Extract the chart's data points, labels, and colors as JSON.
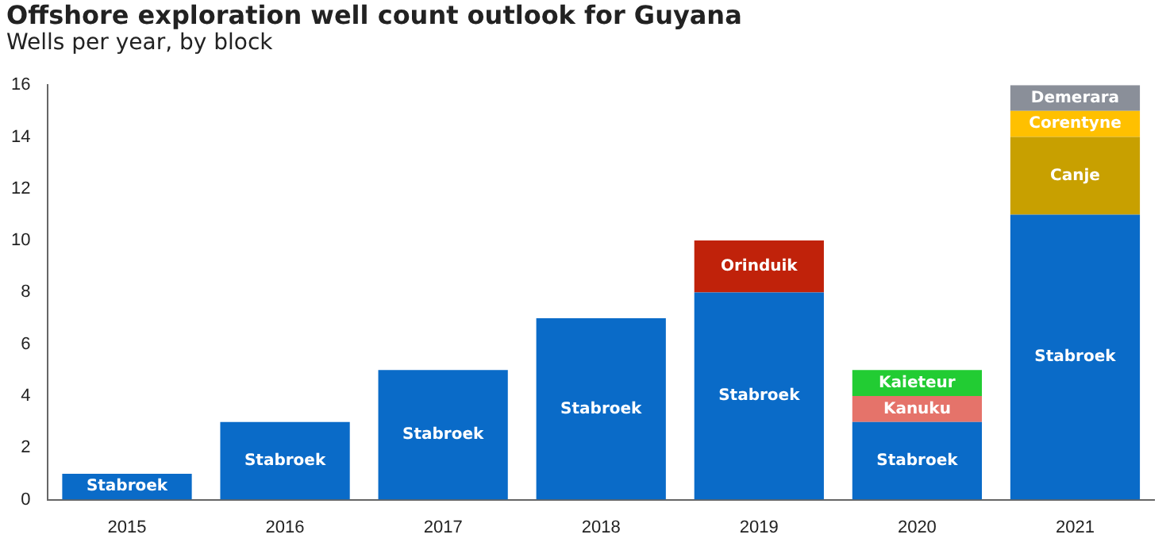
{
  "chart_data": {
    "type": "bar",
    "title": "Offshore exploration well count outlook for Guyana",
    "subtitle": "Wells per year, by block",
    "categories": [
      "2015",
      "2016",
      "2017",
      "2018",
      "2019",
      "2020",
      "2021"
    ],
    "stacked": true,
    "ylim": [
      0,
      16
    ],
    "yticks": [
      0,
      2,
      4,
      6,
      8,
      10,
      12,
      14,
      16
    ],
    "grid": false,
    "legend": false,
    "series": [
      {
        "name": "Stabroek",
        "color": "#0a6bc8",
        "values": [
          1,
          3,
          5,
          7,
          8,
          3,
          11
        ]
      },
      {
        "name": "Orinduik",
        "color": "#c0220a",
        "values": [
          null,
          null,
          null,
          null,
          2,
          null,
          null
        ]
      },
      {
        "name": "Kanuku",
        "color": "#e5736a",
        "values": [
          null,
          null,
          null,
          null,
          null,
          1,
          null
        ]
      },
      {
        "name": "Kaieteur",
        "color": "#22cc33",
        "values": [
          null,
          null,
          null,
          null,
          null,
          1,
          null
        ]
      },
      {
        "name": "Canje",
        "color": "#c8a000",
        "values": [
          null,
          null,
          null,
          null,
          null,
          null,
          3
        ]
      },
      {
        "name": "Corentyne",
        "color": "#ffc000",
        "values": [
          null,
          null,
          null,
          null,
          null,
          null,
          1
        ]
      },
      {
        "name": "Demerara",
        "color": "#8a8f99",
        "values": [
          null,
          null,
          null,
          null,
          null,
          null,
          1
        ]
      }
    ]
  }
}
